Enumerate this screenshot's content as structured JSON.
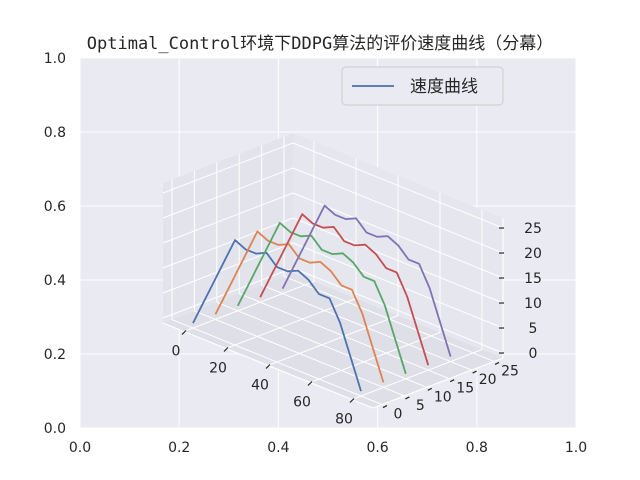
{
  "chart_data": {
    "type": "line",
    "title": "Optimal_Control环境下DDPG算法的评价速度曲线（分幕）",
    "outer_axes": {
      "x_ticks": [
        "0.0",
        "0.2",
        "0.4",
        "0.6",
        "0.8",
        "1.0"
      ],
      "y_ticks": [
        "0.0",
        "0.2",
        "0.4",
        "0.6",
        "0.8",
        "1.0"
      ]
    },
    "axes3d": {
      "x_ticks": [
        "0",
        "20",
        "40",
        "60",
        "80"
      ],
      "y_ticks": [
        "0",
        "5",
        "10",
        "15",
        "20",
        "25"
      ],
      "z_ticks": [
        "0",
        "5",
        "10",
        "15",
        "20",
        "25"
      ],
      "xlim": [
        -10,
        90
      ],
      "ylim": [
        -2,
        27
      ],
      "zlim": [
        -1,
        27
      ]
    },
    "legend": {
      "label": "速度曲线",
      "placement": "top-right"
    },
    "x": [
      0,
      5,
      10,
      15,
      20,
      25,
      30,
      35,
      40,
      45,
      50,
      55,
      60,
      65,
      70,
      75,
      80
    ],
    "series": [
      {
        "y": 0,
        "color": "#4c72b0",
        "z": [
          0,
          5,
          10,
          15,
          20,
          19,
          19,
          20,
          18,
          18,
          19,
          18,
          16,
          16,
          12,
          6,
          0
        ]
      },
      {
        "y": 5,
        "color": "#dd8452",
        "z": [
          0,
          5,
          10,
          15,
          20,
          19,
          19,
          20,
          18,
          18,
          19,
          18,
          16,
          16,
          12,
          6,
          0
        ]
      },
      {
        "y": 10,
        "color": "#55a868",
        "z": [
          0,
          5,
          10,
          15,
          20,
          19,
          19,
          20,
          18,
          18,
          19,
          18,
          16,
          16,
          12,
          6,
          0
        ]
      },
      {
        "y": 15,
        "color": "#c44e52",
        "z": [
          0,
          5,
          10,
          15,
          20,
          19,
          19,
          20,
          18,
          18,
          19,
          18,
          16,
          16,
          12,
          6,
          0
        ]
      },
      {
        "y": 20,
        "color": "#8172b3",
        "z": [
          0,
          5,
          10,
          15,
          20,
          19,
          19,
          20,
          18,
          18,
          19,
          18,
          16,
          16,
          12,
          6,
          0
        ]
      }
    ],
    "grid": true
  }
}
